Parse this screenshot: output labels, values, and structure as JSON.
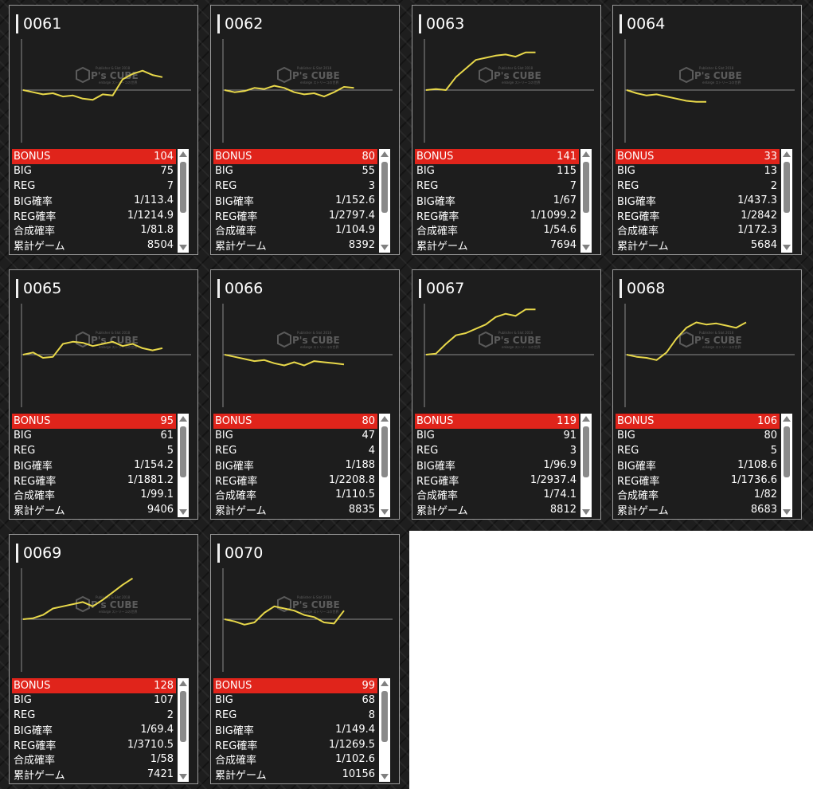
{
  "watermark": {
    "top": "Publisher & Slot 2018",
    "brand": "P's CUBE",
    "bottom": "enlarge ストリーコの世界"
  },
  "colors": {
    "bonus_bg": "#e0241b",
    "line": "#e8d84a",
    "panel_bg": "#1d1d1d"
  },
  "labels": [
    "BONUS",
    "BIG",
    "REG",
    "BIG確率",
    "REG確率",
    "合成確率",
    "累計ゲーム"
  ],
  "machines": [
    {
      "id": "0061",
      "stats": [
        "104",
        "75",
        "7",
        "1/113.4",
        "1/1214.9",
        "1/81.8",
        "8504"
      ],
      "chart_data": {
        "type": "line",
        "y": [
          0,
          -2,
          -4,
          -3,
          -6,
          -5,
          -8,
          -9,
          -4,
          -5,
          10,
          15,
          18,
          14,
          12
        ]
      }
    },
    {
      "id": "0062",
      "stats": [
        "80",
        "55",
        "3",
        "1/152.6",
        "1/2797.4",
        "1/104.9",
        "8392"
      ],
      "chart_data": {
        "type": "line",
        "y": [
          0,
          -2,
          -1,
          2,
          1,
          4,
          2,
          -2,
          -4,
          -3,
          -6,
          -2,
          3,
          2
        ]
      }
    },
    {
      "id": "0063",
      "stats": [
        "141",
        "115",
        "7",
        "1/67",
        "1/1099.2",
        "1/54.6",
        "7694"
      ],
      "chart_data": {
        "type": "line",
        "y": [
          0,
          1,
          0,
          12,
          20,
          28,
          30,
          32,
          33,
          31,
          35,
          35
        ]
      }
    },
    {
      "id": "0064",
      "stats": [
        "33",
        "13",
        "2",
        "1/437.3",
        "1/2842",
        "1/172.3",
        "5684"
      ],
      "chart_data": {
        "type": "line",
        "y": [
          0,
          -3,
          -5,
          -4,
          -6,
          -8,
          -10,
          -11,
          -11
        ]
      }
    },
    {
      "id": "0065",
      "stats": [
        "95",
        "61",
        "5",
        "1/154.2",
        "1/1881.2",
        "1/99.1",
        "9406"
      ],
      "chart_data": {
        "type": "line",
        "y": [
          0,
          2,
          -3,
          -2,
          10,
          12,
          11,
          8,
          10,
          12,
          8,
          10,
          6,
          4,
          6
        ]
      }
    },
    {
      "id": "0066",
      "stats": [
        "80",
        "47",
        "4",
        "1/188",
        "1/2208.8",
        "1/110.5",
        "8835"
      ],
      "chart_data": {
        "type": "line",
        "y": [
          0,
          -2,
          -4,
          -6,
          -5,
          -8,
          -10,
          -7,
          -10,
          -6,
          -7,
          -8,
          -9
        ]
      }
    },
    {
      "id": "0067",
      "stats": [
        "119",
        "91",
        "3",
        "1/96.9",
        "1/2937.4",
        "1/74.1",
        "8812"
      ],
      "chart_data": {
        "type": "line",
        "y": [
          0,
          1,
          10,
          18,
          20,
          24,
          28,
          35,
          38,
          36,
          42,
          42
        ]
      }
    },
    {
      "id": "0068",
      "stats": [
        "106",
        "80",
        "5",
        "1/108.6",
        "1/1736.6",
        "1/82",
        "8683"
      ],
      "chart_data": {
        "type": "line",
        "y": [
          0,
          -2,
          -3,
          -5,
          2,
          15,
          25,
          30,
          28,
          29,
          27,
          25,
          30
        ]
      }
    },
    {
      "id": "0069",
      "stats": [
        "128",
        "107",
        "2",
        "1/69.4",
        "1/3710.5",
        "1/58",
        "7421"
      ],
      "chart_data": {
        "type": "line",
        "y": [
          0,
          1,
          4,
          10,
          12,
          14,
          16,
          12,
          18,
          25,
          32,
          38
        ]
      }
    },
    {
      "id": "0070",
      "stats": [
        "99",
        "68",
        "8",
        "1/149.4",
        "1/1269.5",
        "1/102.6",
        "10156"
      ],
      "chart_data": {
        "type": "line",
        "y": [
          0,
          -2,
          -5,
          -3,
          6,
          12,
          10,
          8,
          4,
          2,
          -3,
          -4,
          8
        ]
      }
    }
  ]
}
